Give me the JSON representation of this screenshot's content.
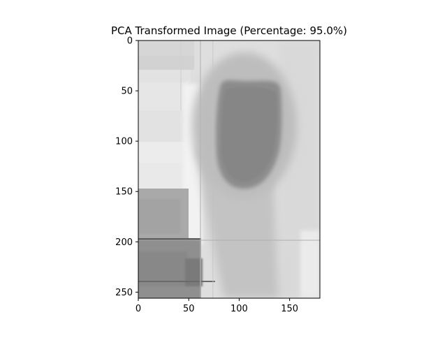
{
  "chart_data": {
    "type": "heatmap",
    "title": "PCA Transformed Image (Percentage: 95.0%)",
    "xlabel": "",
    "ylabel": "",
    "image_size": {
      "width": 180,
      "height": 256
    },
    "xlim": [
      0,
      180
    ],
    "ylim": [
      256,
      0
    ],
    "x_ticks": [
      0,
      50,
      100,
      150
    ],
    "y_ticks": [
      0,
      50,
      100,
      150,
      200,
      250
    ],
    "x_tick_labels": [
      "0",
      "50",
      "100",
      "150"
    ],
    "y_tick_labels": [
      "0",
      "50",
      "100",
      "150",
      "200",
      "250"
    ],
    "colormap": "gray",
    "grid": false,
    "legend": "none"
  }
}
